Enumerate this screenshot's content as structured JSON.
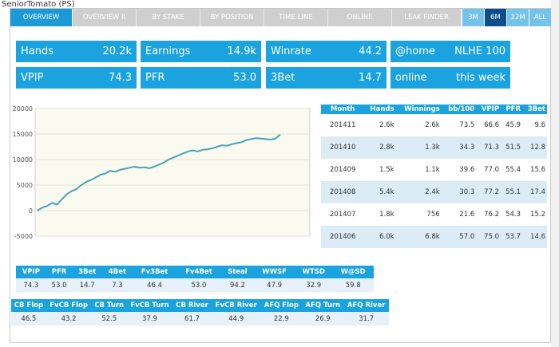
{
  "header": {
    "title": "SeniorTomato (PS)"
  },
  "tabs": [
    {
      "label": "OVERVIEW",
      "active": true
    },
    {
      "label": "OVERVIEW II",
      "active": false
    },
    {
      "label": "BY STAKE",
      "active": false
    },
    {
      "label": "BY POSITION",
      "active": false
    },
    {
      "label": "TIME-LINE",
      "active": false
    },
    {
      "label": "ONLINE",
      "active": false
    },
    {
      "label": "LEAK FINDER",
      "active": false
    }
  ],
  "ranges": [
    {
      "label": "3M",
      "selected": false
    },
    {
      "label": "6M",
      "selected": true
    },
    {
      "label": "12M",
      "selected": false
    },
    {
      "label": "ALL",
      "selected": false
    }
  ],
  "stats": {
    "hands": {
      "label": "Hands",
      "value": "20.2k"
    },
    "earnings": {
      "label": "Earnings",
      "value": "14.9k"
    },
    "winrate": {
      "label": "Winrate",
      "value": "44.2"
    },
    "home": {
      "label": "@home",
      "value": "NLHE 100"
    },
    "vpip": {
      "label": "VPIP",
      "value": "74.3"
    },
    "pfr": {
      "label": "PFR",
      "value": "53.0"
    },
    "threebet": {
      "label": "3Bet",
      "value": "14.7"
    },
    "online": {
      "label": "online",
      "value": "this week"
    }
  },
  "chart_data": {
    "type": "line",
    "y_ticks": [
      "20000",
      "15000",
      "10000",
      "5000",
      "0",
      "-5000"
    ],
    "ylim": [
      -5000,
      20000
    ],
    "grid": true,
    "color": "#4aa3b5",
    "series": [
      {
        "values": [
          0,
          600,
          900,
          1500,
          1200,
          2200,
          3200,
          3800,
          4200,
          5000,
          5600,
          6000,
          6500,
          7000,
          7300,
          7800,
          7600,
          8000,
          8200,
          8400,
          8600,
          8400,
          8500,
          8300,
          8600,
          9000,
          9400,
          10000,
          10400,
          10800,
          11200,
          11600,
          11800,
          11600,
          11900,
          12000,
          12200,
          12500,
          12800,
          12700,
          13000,
          13200,
          13400,
          13800,
          14000,
          14200,
          14100,
          14000,
          13900,
          14100,
          14900
        ]
      }
    ]
  },
  "month_table": {
    "headers": [
      "Month",
      "Hands",
      "Winnings",
      "bb/100",
      "VPIP",
      "PFR",
      "3Bet"
    ],
    "rows": [
      [
        "201411",
        "2.6k",
        "2.6k",
        "73.5",
        "66.6",
        "45.9",
        "9.6"
      ],
      [
        "201410",
        "2.8k",
        "1.3k",
        "34.3",
        "71.3",
        "51.5",
        "12.8"
      ],
      [
        "201409",
        "1.5k",
        "1.1k",
        "39.6",
        "77.0",
        "55.4",
        "15.6"
      ],
      [
        "201408",
        "5.4k",
        "2.4k",
        "30.3",
        "77.2",
        "55.1",
        "17.4"
      ],
      [
        "201407",
        "1.8k",
        "756",
        "21.6",
        "76.2",
        "54.3",
        "15.2"
      ],
      [
        "201406",
        "6.0k",
        "6.8k",
        "57.0",
        "75.0",
        "53.7",
        "14.6"
      ]
    ]
  },
  "stats_grid_1": {
    "headers": [
      "VPIP",
      "PFR",
      "3Bet",
      "4Bet",
      "Fv3Bet",
      "Fv4Bet",
      "Steal",
      "WWSF",
      "WTSD",
      "W@SD"
    ],
    "values": [
      "74.3",
      "53.0",
      "14.7",
      "7.3",
      "46.4",
      "53.0",
      "94.2",
      "47.9",
      "32.9",
      "59.8"
    ]
  },
  "stats_grid_2": {
    "headers": [
      "CB Flop",
      "FvCB Flop",
      "CB Turn",
      "FvCB Turn",
      "CB River",
      "FvCB River",
      "AFQ Flop",
      "AFQ Turn",
      "AFQ River"
    ],
    "values": [
      "46.5",
      "43.2",
      "52.5",
      "37.9",
      "61.7",
      "44.9",
      "22.9",
      "26.9",
      "31.7"
    ]
  }
}
